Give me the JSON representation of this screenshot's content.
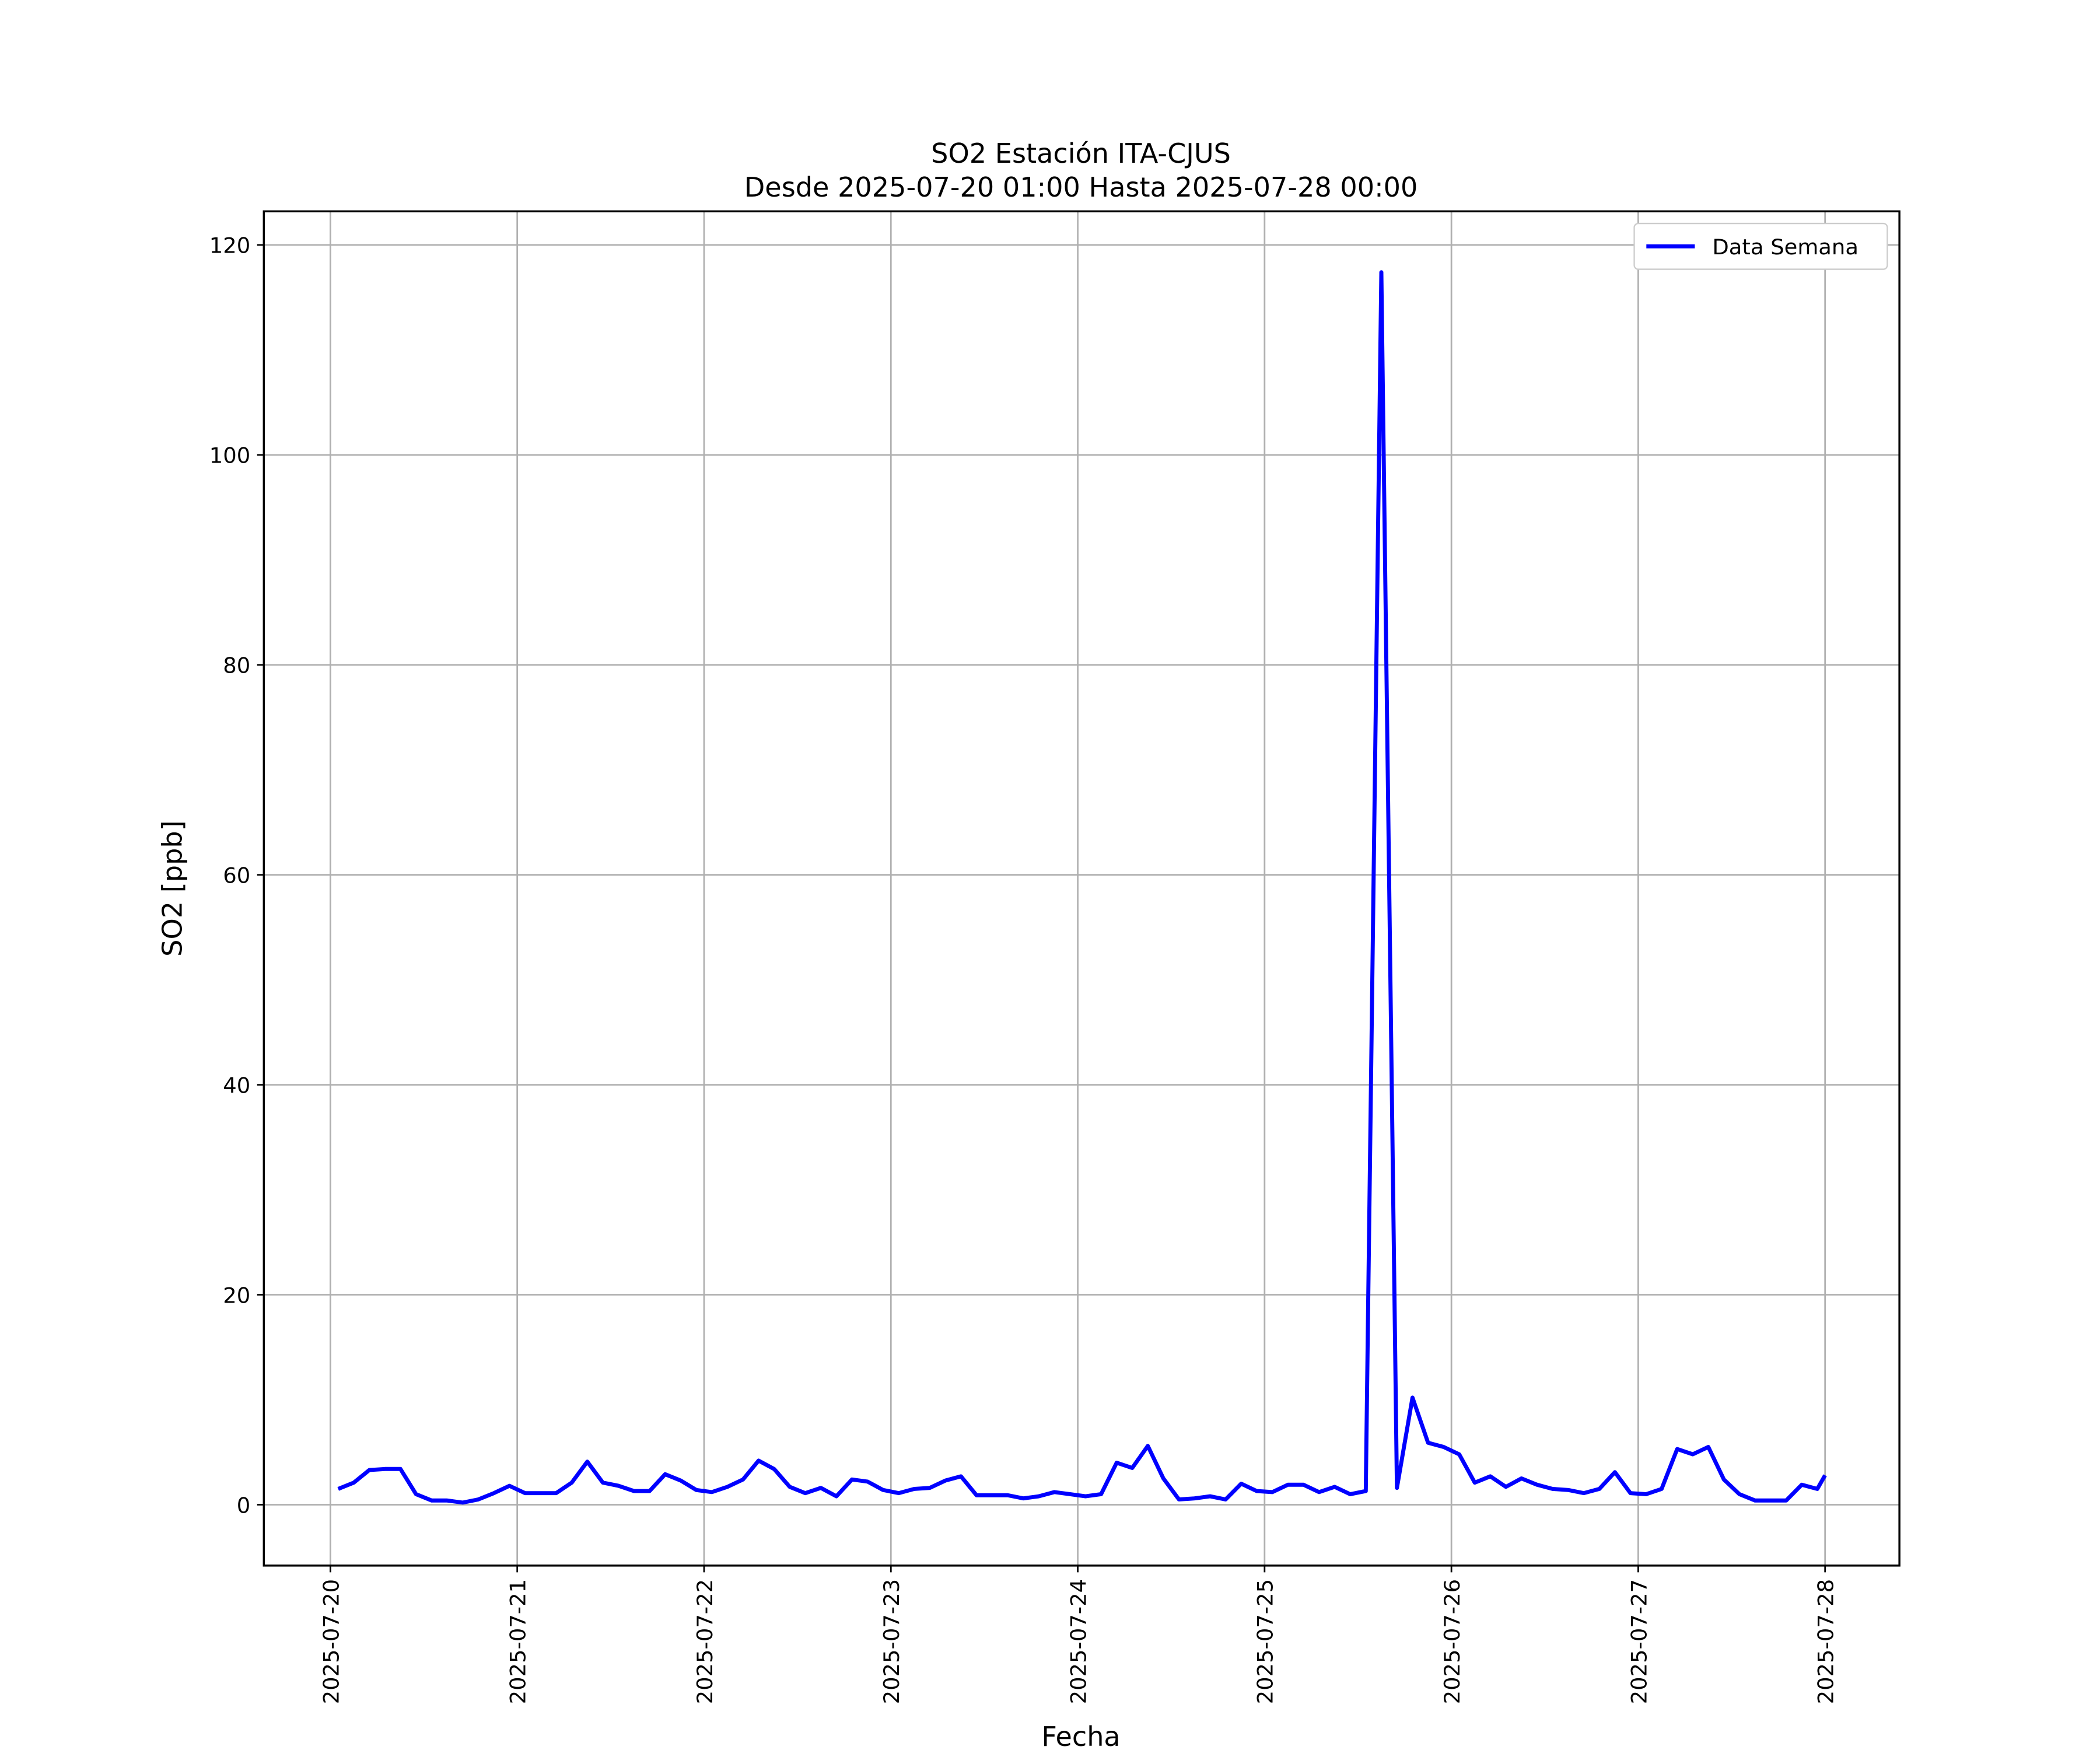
{
  "chart_data": {
    "type": "line",
    "title": "SO2 Estación ITA-CJUS",
    "subtitle": "Desde 2025-07-20 01:00 Hasta 2025-07-28 00:00",
    "x_label": "Fecha",
    "y_label": "SO2 [ppb]",
    "x": [
      "2025-07-20 01:00",
      "2025-07-20 03:00",
      "2025-07-20 05:00",
      "2025-07-20 07:00",
      "2025-07-20 09:00",
      "2025-07-20 11:00",
      "2025-07-20 13:00",
      "2025-07-20 15:00",
      "2025-07-20 17:00",
      "2025-07-20 19:00",
      "2025-07-20 21:00",
      "2025-07-20 23:00",
      "2025-07-21 01:00",
      "2025-07-21 03:00",
      "2025-07-21 05:00",
      "2025-07-21 07:00",
      "2025-07-21 09:00",
      "2025-07-21 11:00",
      "2025-07-21 13:00",
      "2025-07-21 15:00",
      "2025-07-21 17:00",
      "2025-07-21 19:00",
      "2025-07-21 21:00",
      "2025-07-21 23:00",
      "2025-07-22 01:00",
      "2025-07-22 03:00",
      "2025-07-22 05:00",
      "2025-07-22 07:00",
      "2025-07-22 09:00",
      "2025-07-22 11:00",
      "2025-07-22 13:00",
      "2025-07-22 15:00",
      "2025-07-22 17:00",
      "2025-07-22 19:00",
      "2025-07-22 21:00",
      "2025-07-22 23:00",
      "2025-07-23 01:00",
      "2025-07-23 03:00",
      "2025-07-23 05:00",
      "2025-07-23 07:00",
      "2025-07-23 09:00",
      "2025-07-23 11:00",
      "2025-07-23 13:00",
      "2025-07-23 15:00",
      "2025-07-23 17:00",
      "2025-07-23 19:00",
      "2025-07-23 21:00",
      "2025-07-23 23:00",
      "2025-07-24 01:00",
      "2025-07-24 03:00",
      "2025-07-24 05:00",
      "2025-07-24 07:00",
      "2025-07-24 09:00",
      "2025-07-24 11:00",
      "2025-07-24 13:00",
      "2025-07-24 15:00",
      "2025-07-24 17:00",
      "2025-07-24 19:00",
      "2025-07-24 21:00",
      "2025-07-24 23:00",
      "2025-07-25 01:00",
      "2025-07-25 03:00",
      "2025-07-25 05:00",
      "2025-07-25 07:00",
      "2025-07-25 09:00",
      "2025-07-25 11:00",
      "2025-07-25 13:00",
      "2025-07-25 15:00",
      "2025-07-25 17:00",
      "2025-07-25 19:00",
      "2025-07-25 21:00",
      "2025-07-25 23:00",
      "2025-07-26 01:00",
      "2025-07-26 03:00",
      "2025-07-26 05:00",
      "2025-07-26 07:00",
      "2025-07-26 09:00",
      "2025-07-26 11:00",
      "2025-07-26 13:00",
      "2025-07-26 15:00",
      "2025-07-26 17:00",
      "2025-07-26 19:00",
      "2025-07-26 21:00",
      "2025-07-26 23:00",
      "2025-07-27 01:00",
      "2025-07-27 03:00",
      "2025-07-27 05:00",
      "2025-07-27 07:00",
      "2025-07-27 09:00",
      "2025-07-27 11:00",
      "2025-07-27 13:00",
      "2025-07-27 15:00",
      "2025-07-27 17:00",
      "2025-07-27 19:00",
      "2025-07-27 21:00",
      "2025-07-27 23:00",
      "2025-07-28 00:00"
    ],
    "series": [
      {
        "name": "Data Semana",
        "color": "#0000ff",
        "values": [
          1.5,
          2.1,
          3.3,
          3.4,
          3.4,
          1.0,
          0.4,
          0.4,
          0.2,
          0.5,
          1.1,
          1.8,
          1.1,
          1.1,
          1.1,
          2.1,
          4.1,
          2.1,
          1.8,
          1.3,
          1.3,
          2.9,
          2.3,
          1.4,
          1.2,
          1.7,
          2.4,
          4.2,
          3.4,
          1.7,
          1.1,
          1.6,
          0.8,
          2.4,
          2.2,
          1.4,
          1.1,
          1.5,
          1.6,
          2.3,
          2.7,
          0.9,
          0.9,
          0.9,
          0.6,
          0.8,
          1.2,
          1.0,
          0.8,
          1.0,
          4.0,
          3.5,
          5.6,
          2.5,
          0.5,
          0.6,
          0.8,
          0.5,
          2.0,
          1.3,
          1.2,
          1.9,
          1.9,
          1.2,
          1.7,
          1.0,
          1.3,
          117.4,
          1.6,
          10.2,
          5.9,
          5.5,
          4.8,
          2.1,
          2.7,
          1.7,
          2.5,
          1.9,
          1.5,
          1.4,
          1.1,
          1.5,
          3.1,
          1.1,
          1.0,
          1.5,
          5.3,
          4.8,
          5.5,
          2.4,
          1.0,
          0.4,
          0.4,
          0.4,
          1.9,
          1.5,
          2.8
        ]
      }
    ],
    "xticks": [
      "2025-07-20",
      "2025-07-21",
      "2025-07-22",
      "2025-07-23",
      "2025-07-24",
      "2025-07-25",
      "2025-07-26",
      "2025-07-27",
      "2025-07-28"
    ],
    "ylim": [
      -5.8,
      123.2
    ],
    "yticks": [
      0,
      20,
      40,
      60,
      80,
      100,
      120
    ],
    "grid": true,
    "legend": "upper right"
  }
}
